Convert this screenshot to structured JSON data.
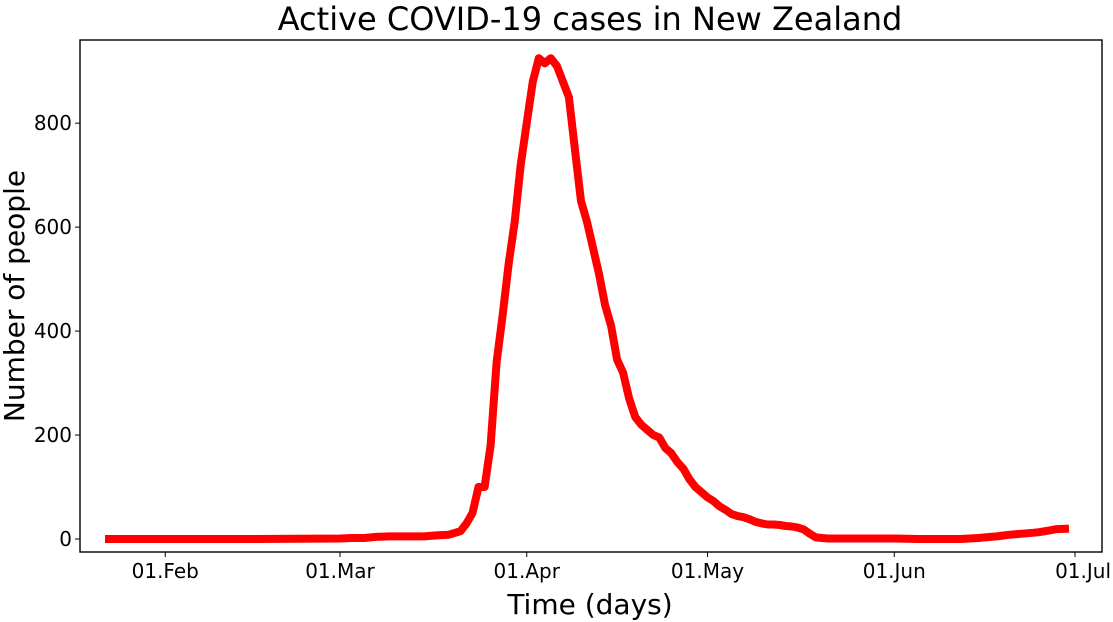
{
  "chart_data": {
    "type": "line",
    "title": "Active COVID-19 cases in New Zealand",
    "xlabel": "Time (days)",
    "ylabel": "Number of people",
    "xlim": [
      "2020-01-22",
      "2020-07-01"
    ],
    "ylim": [
      -25,
      960
    ],
    "x_ticks": [
      {
        "date": "2020-02-01",
        "label": "01.Feb"
      },
      {
        "date": "2020-03-01",
        "label": "01.Mar"
      },
      {
        "date": "2020-04-01",
        "label": "01.Apr"
      },
      {
        "date": "2020-05-01",
        "label": "01.May"
      },
      {
        "date": "2020-06-01",
        "label": "01.Jun"
      },
      {
        "date": "2020-07-01",
        "label": "01.Jul"
      }
    ],
    "y_ticks": [
      0,
      200,
      400,
      600,
      800
    ],
    "grid": false,
    "line_color": "#ff0000",
    "series": [
      {
        "x": [
          "2020-01-22",
          "2020-02-15",
          "2020-03-01",
          "2020-03-03",
          "2020-03-05",
          "2020-03-07",
          "2020-03-09",
          "2020-03-12",
          "2020-03-15",
          "2020-03-17",
          "2020-03-19",
          "2020-03-21",
          "2020-03-22",
          "2020-03-23",
          "2020-03-24",
          "2020-03-25",
          "2020-03-26",
          "2020-03-27",
          "2020-03-28",
          "2020-03-29",
          "2020-03-30",
          "2020-03-31",
          "2020-04-01",
          "2020-04-02",
          "2020-04-03",
          "2020-04-04",
          "2020-04-05",
          "2020-04-06",
          "2020-04-07",
          "2020-04-08",
          "2020-04-09",
          "2020-04-10",
          "2020-04-11",
          "2020-04-12",
          "2020-04-13",
          "2020-04-14",
          "2020-04-15",
          "2020-04-16",
          "2020-04-17",
          "2020-04-18",
          "2020-04-19",
          "2020-04-20",
          "2020-04-21",
          "2020-04-22",
          "2020-04-23",
          "2020-04-24",
          "2020-04-25",
          "2020-04-26",
          "2020-04-27",
          "2020-04-28",
          "2020-04-29",
          "2020-04-30",
          "2020-05-01",
          "2020-05-02",
          "2020-05-03",
          "2020-05-04",
          "2020-05-05",
          "2020-05-06",
          "2020-05-07",
          "2020-05-08",
          "2020-05-09",
          "2020-05-10",
          "2020-05-11",
          "2020-05-12",
          "2020-05-13",
          "2020-05-14",
          "2020-05-15",
          "2020-05-16",
          "2020-05-17",
          "2020-05-18",
          "2020-05-19",
          "2020-05-20",
          "2020-05-21",
          "2020-05-22",
          "2020-05-23",
          "2020-05-24",
          "2020-05-25",
          "2020-05-26",
          "2020-05-27",
          "2020-05-28",
          "2020-05-29",
          "2020-05-30",
          "2020-05-31",
          "2020-06-01",
          "2020-06-05",
          "2020-06-08",
          "2020-06-12",
          "2020-06-15",
          "2020-06-16",
          "2020-06-18",
          "2020-06-20",
          "2020-06-22",
          "2020-06-24",
          "2020-06-25",
          "2020-06-26",
          "2020-06-27",
          "2020-06-28",
          "2020-06-30"
        ],
        "y": [
          0,
          0,
          1,
          2,
          2,
          4,
          5,
          5,
          5,
          7,
          8,
          15,
          30,
          50,
          100,
          100,
          180,
          340,
          430,
          530,
          610,
          720,
          800,
          880,
          925,
          915,
          925,
          910,
          880,
          850,
          750,
          650,
          610,
          560,
          510,
          450,
          410,
          345,
          320,
          270,
          235,
          220,
          210,
          200,
          195,
          175,
          165,
          148,
          135,
          115,
          100,
          90,
          80,
          73,
          63,
          56,
          48,
          44,
          42,
          38,
          33,
          30,
          28,
          28,
          27,
          25,
          24,
          22,
          18,
          10,
          3,
          2,
          1,
          1,
          1,
          1,
          1,
          1,
          1,
          1,
          1,
          1,
          1,
          1,
          0,
          0,
          0,
          2,
          3,
          5,
          8,
          10,
          12,
          13,
          15,
          17,
          19,
          20
        ]
      }
    ]
  }
}
